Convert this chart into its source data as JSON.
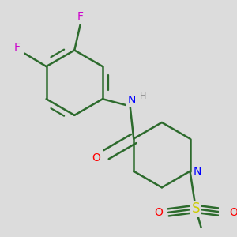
{
  "background_color": "#dcdcdc",
  "bond_color": "#2d6b2d",
  "bond_width": 1.8,
  "atom_colors": {
    "F": "#cc00cc",
    "N": "#0000ff",
    "O": "#ff0000",
    "S": "#cccc00",
    "H": "#888888",
    "C": "#2d6b2d"
  },
  "font_size": 10,
  "figsize": [
    3.0,
    3.0
  ],
  "dpi": 100
}
